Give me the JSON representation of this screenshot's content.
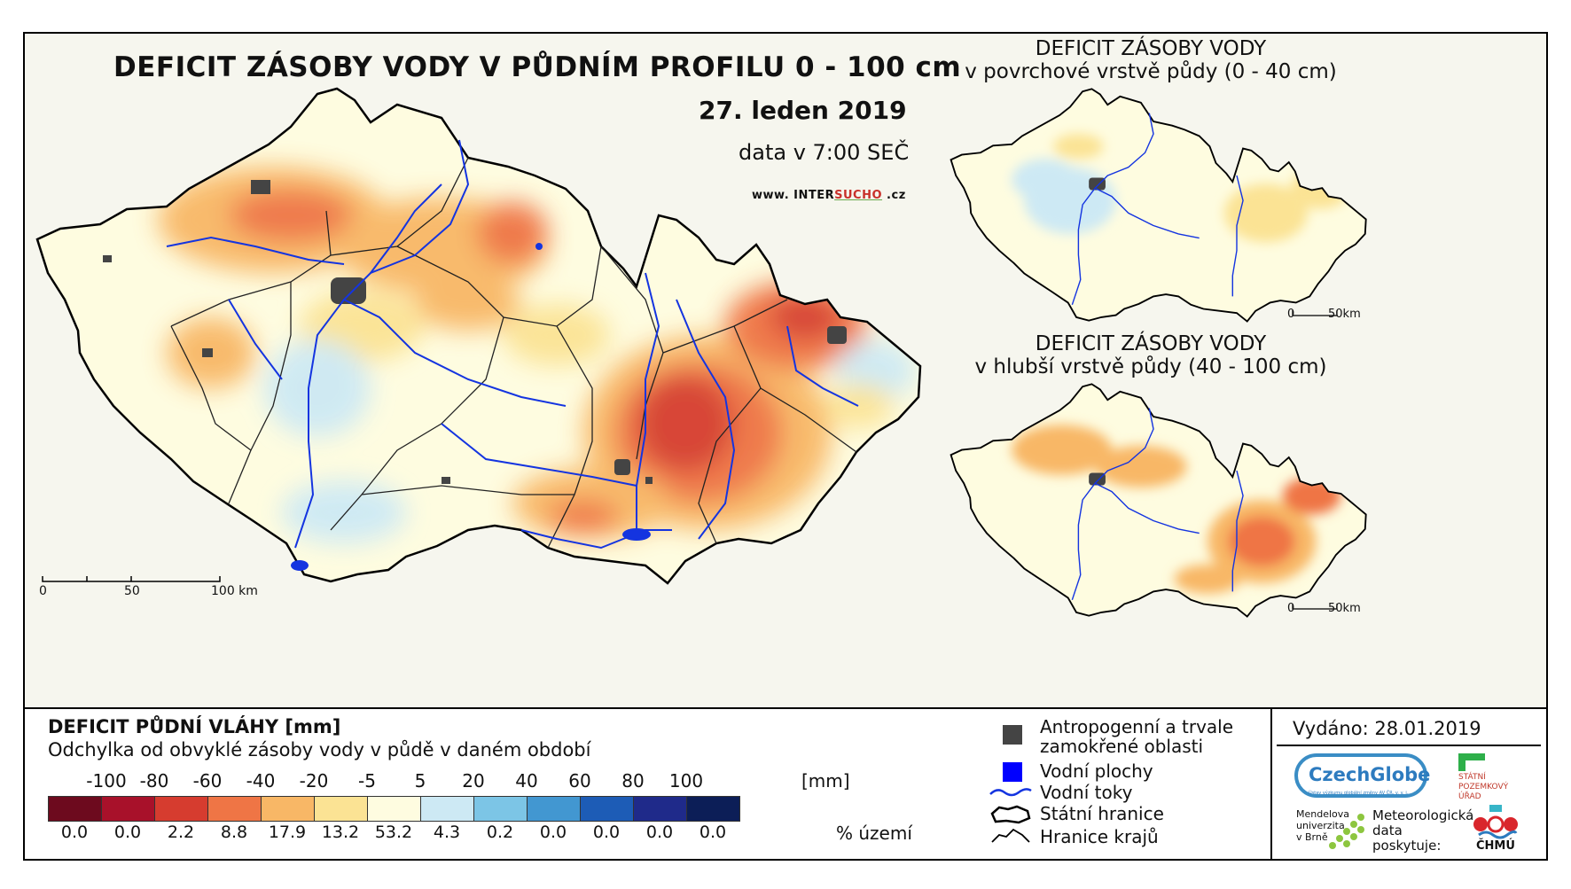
{
  "main_map": {
    "title": "DEFICIT ZÁSOBY VODY V PŮDNÍM PROFILU 0 - 100 cm",
    "date": "27. leden 2019",
    "time": "data v 7:00 SEČ",
    "site_prefix": "www. INTER",
    "site_highlight": "SUCHO",
    "site_suffix": " .cz",
    "scale": {
      "l0": "0",
      "l1": "50",
      "l2": "100 km"
    }
  },
  "inset_top": {
    "title1": "DEFICIT ZÁSOBY VODY",
    "title2": "v povrchové vrstvě půdy (0 - 40 cm)",
    "scale0": "0",
    "scale1": "50km"
  },
  "inset_bottom": {
    "title1": "DEFICIT ZÁSOBY VODY",
    "title2": "v hlubší vrstvě půdy (40 - 100 cm)",
    "scale0": "0",
    "scale1": "50km"
  },
  "legend": {
    "title": "DEFICIT PŮDNÍ VLÁHY [mm]",
    "subtitle": "Odchylka od obvyklé zásoby vody v půdě v daném období",
    "unit": "[mm]",
    "pct_label": "% území",
    "ticks": [
      "-100",
      "-80",
      "-60",
      "-40",
      "-20",
      "-5",
      "5",
      "20",
      "40",
      "60",
      "80",
      "100"
    ],
    "colors": [
      "#6d0a1e",
      "#a8112a",
      "#d63c2f",
      "#ef7545",
      "#f8b766",
      "#fbe394",
      "#fefce0",
      "#cde9f4",
      "#7cc5e6",
      "#4297d1",
      "#1d5cb6",
      "#1f2a8a",
      "#0c1e57"
    ],
    "percentages": [
      "0.0",
      "0.0",
      "2.2",
      "8.8",
      "17.9",
      "13.2",
      "53.2",
      "4.3",
      "0.2",
      "0.0",
      "0.0",
      "0.0",
      "0.0"
    ]
  },
  "symbols": {
    "anthropogenic_1": "Antropogenní a trvale",
    "anthropogenic_2": "zamokřené oblasti",
    "water_bodies": "Vodní plochy",
    "rivers": "Vodní toky",
    "state_border": "Státní hranice",
    "region_border": "Hranice krajů"
  },
  "issued": "Vydáno: 28.01.2019",
  "logos": {
    "czechglobe": "CzechGlobe",
    "czechglobe_sub": "Ústav výzkumu globální změny AV ČR, v. v. i.",
    "spu_1": "STÁTNÍ",
    "spu_2": "POZEMKOVÝ",
    "spu_3": "ÚŘAD",
    "mendel_1": "Mendelova",
    "mendel_2": "univerzita",
    "mendel_3": "v Brně",
    "meteo_1": "Meteorologická",
    "meteo_2": "data",
    "meteo_3": "poskytuje:",
    "chmu": "ČHMÚ"
  },
  "colors": {
    "river": "#1434e0",
    "city": "#444444",
    "border": "#000000"
  }
}
